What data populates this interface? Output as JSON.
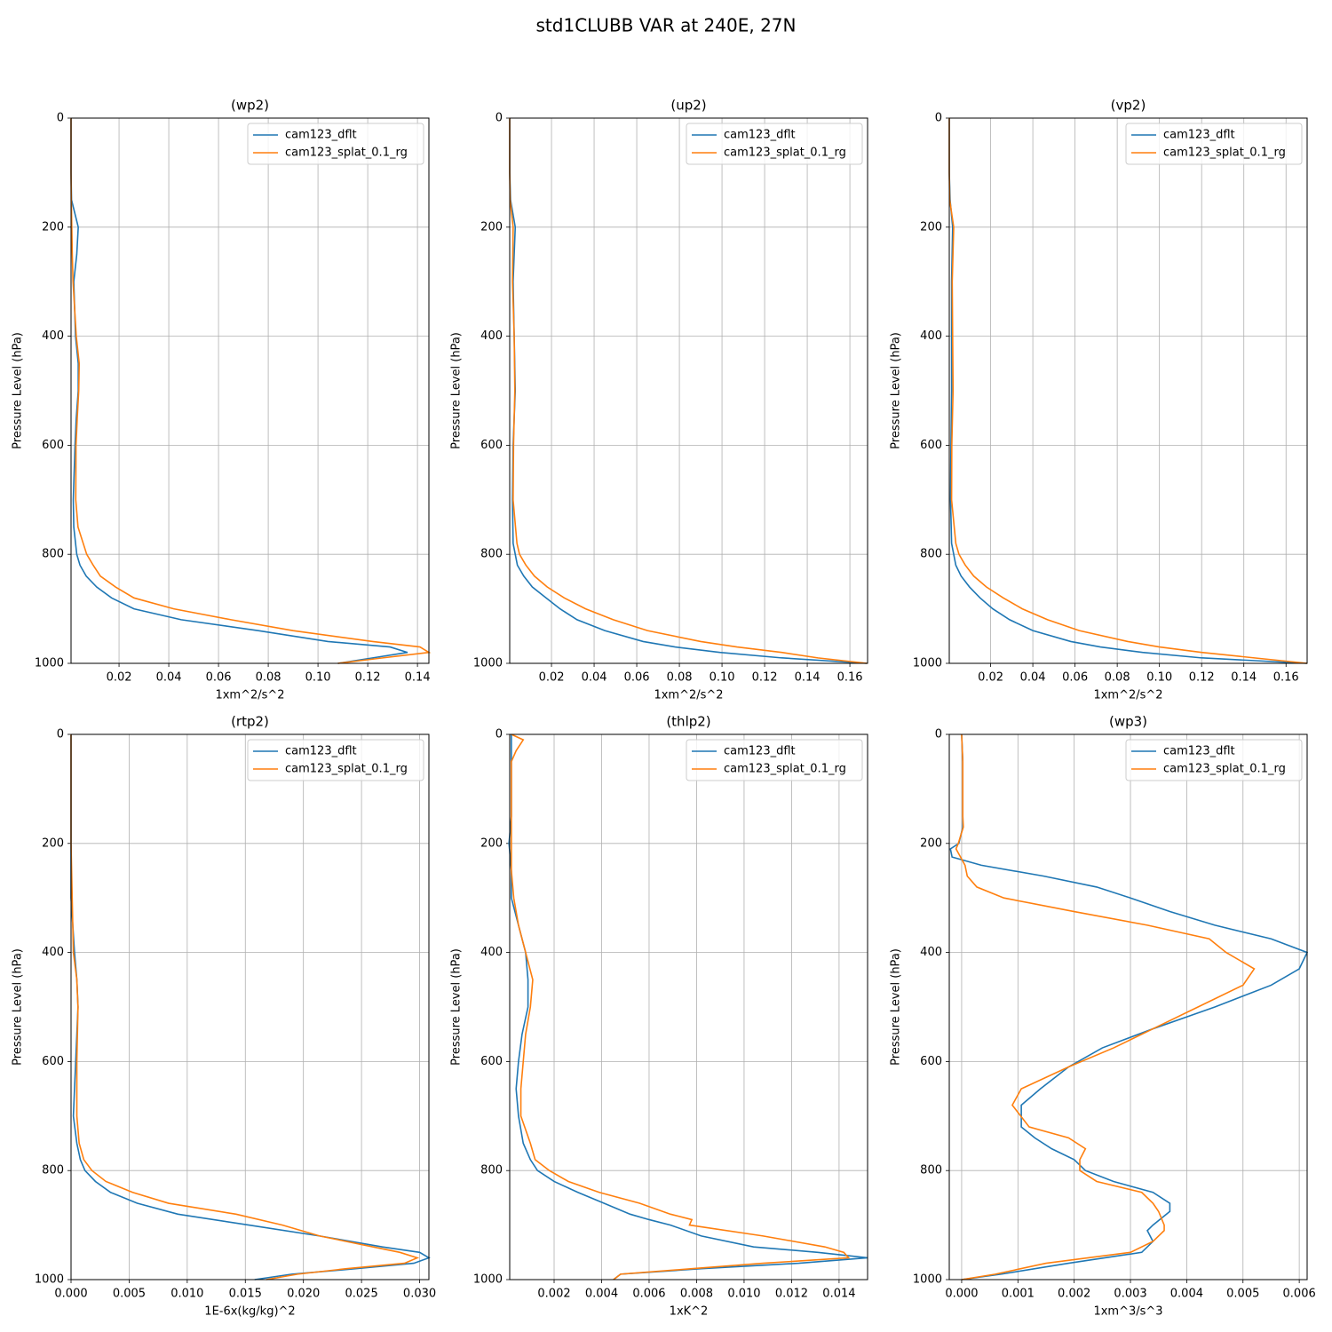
{
  "title": "std1CLUBB VAR at 240E, 27N",
  "chart_data": [
    {
      "type": "line",
      "title": "(wp2)",
      "xlabel": "1xm^2/s^2",
      "ylabel": "Pressure Level (hPa)",
      "grid": true,
      "legend": "upper right",
      "xlim": [
        0.0007,
        0.1446
      ],
      "xticks": [
        0.02,
        0.04,
        0.06,
        0.08,
        {
          "value": 0.1,
          "label": "0.10"
        },
        0.12,
        0.14
      ],
      "ylim": [
        1000,
        0
      ],
      "yticks": [
        0,
        200,
        400,
        600,
        800,
        1000
      ],
      "y": [
        0,
        100,
        150,
        200,
        250,
        300,
        400,
        450,
        500,
        550,
        600,
        700,
        750,
        800,
        820,
        840,
        860,
        880,
        900,
        920,
        940,
        960,
        970,
        980,
        990,
        1000
      ],
      "series": [
        {
          "name": "cam123_dflt",
          "color": "#1f77b4",
          "values": [
            0.0007,
            0.0007,
            0.0009,
            0.0036,
            0.003,
            0.0018,
            0.0025,
            0.0036,
            0.0036,
            0.0028,
            0.0023,
            0.0016,
            0.0018,
            0.003,
            0.0043,
            0.0068,
            0.011,
            0.017,
            0.026,
            0.045,
            0.076,
            0.104,
            0.129,
            0.136,
            0.122,
            0.108
          ]
        },
        {
          "name": "cam123_splat_0.1_rg",
          "color": "#ff7f0e",
          "values": [
            0.0007,
            0.0007,
            0.0008,
            0.001,
            0.0012,
            0.0015,
            0.0028,
            0.004,
            0.0038,
            0.0032,
            0.0027,
            0.0026,
            0.0035,
            0.007,
            0.0096,
            0.0125,
            0.0186,
            0.026,
            0.042,
            0.065,
            0.09,
            0.122,
            0.141,
            0.1446,
            0.126,
            0.108
          ]
        }
      ]
    },
    {
      "type": "line",
      "title": "(up2)",
      "xlabel": "1xm^2/s^2",
      "ylabel": "Pressure Level (hPa)",
      "grid": true,
      "legend": "upper right",
      "xlim": [
        0.0004,
        0.1683
      ],
      "xticks": [
        0.02,
        0.04,
        0.06,
        0.08,
        {
          "value": 0.1,
          "label": "0.10"
        },
        0.12,
        0.14,
        0.16
      ],
      "ylim": [
        1000,
        0
      ],
      "yticks": [
        0,
        200,
        400,
        600,
        800,
        1000
      ],
      "y": [
        0,
        100,
        150,
        200,
        300,
        400,
        500,
        600,
        700,
        780,
        800,
        820,
        840,
        860,
        880,
        900,
        920,
        940,
        960,
        970,
        980,
        990,
        1000
      ],
      "series": [
        {
          "name": "cam123_dflt",
          "color": "#1f77b4",
          "values": [
            0.0004,
            0.0004,
            0.0008,
            0.003,
            0.002,
            0.0025,
            0.003,
            0.002,
            0.0017,
            0.002,
            0.003,
            0.004,
            0.007,
            0.011,
            0.0175,
            0.024,
            0.032,
            0.045,
            0.063,
            0.078,
            0.099,
            0.128,
            0.168
          ]
        },
        {
          "name": "cam123_splat_0.1_rg",
          "color": "#ff7f0e",
          "values": [
            0.0004,
            0.0004,
            0.0006,
            0.002,
            0.0017,
            0.0025,
            0.0028,
            0.0022,
            0.002,
            0.0038,
            0.005,
            0.008,
            0.012,
            0.018,
            0.026,
            0.036,
            0.049,
            0.065,
            0.09,
            0.107,
            0.128,
            0.145,
            0.168
          ]
        }
      ]
    },
    {
      "type": "line",
      "title": "(vp2)",
      "xlabel": "1xm^2/s^2",
      "ylabel": "Pressure Level (hPa)",
      "grid": true,
      "legend": "upper right",
      "xlim": [
        0.0004,
        0.17
      ],
      "xticks": [
        0.02,
        0.04,
        0.06,
        0.08,
        {
          "value": 0.1,
          "label": "0.10"
        },
        0.12,
        0.14,
        0.16
      ],
      "ylim": [
        1000,
        0
      ],
      "yticks": [
        0,
        200,
        400,
        600,
        800,
        1000
      ],
      "y": [
        0,
        100,
        150,
        200,
        300,
        400,
        500,
        600,
        700,
        780,
        800,
        820,
        840,
        860,
        880,
        900,
        920,
        940,
        960,
        970,
        980,
        990,
        1000
      ],
      "series": [
        {
          "name": "cam123_dflt",
          "color": "#1f77b4",
          "values": [
            0.0004,
            0.0004,
            0.0008,
            0.002,
            0.0015,
            0.0015,
            0.0015,
            0.0012,
            0.001,
            0.0015,
            0.0025,
            0.0035,
            0.006,
            0.01,
            0.015,
            0.021,
            0.029,
            0.04,
            0.058,
            0.072,
            0.092,
            0.12,
            0.17
          ]
        },
        {
          "name": "cam123_splat_0.1_rg",
          "color": "#ff7f0e",
          "values": [
            0.0004,
            0.0004,
            0.0006,
            0.0025,
            0.0018,
            0.002,
            0.0022,
            0.0016,
            0.0015,
            0.0035,
            0.005,
            0.008,
            0.012,
            0.018,
            0.026,
            0.035,
            0.047,
            0.062,
            0.085,
            0.1,
            0.12,
            0.145,
            0.17
          ]
        }
      ]
    },
    {
      "type": "line",
      "title": "(rtp2)",
      "xlabel": "1E-6x(kg/kg)^2",
      "ylabel": "Pressure Level (hPa)",
      "grid": true,
      "legend": "upper right",
      "xlim": [
        0,
        0.0308
      ],
      "xticks": [
        {
          "value": 0,
          "label": "0.000"
        },
        0.005,
        {
          "value": 0.01,
          "label": "0.010"
        },
        0.015,
        {
          "value": 0.02,
          "label": "0.020"
        },
        0.025,
        {
          "value": 0.03,
          "label": "0.030"
        }
      ],
      "ylim": [
        1000,
        0
      ],
      "yticks": [
        0,
        200,
        400,
        600,
        800,
        1000
      ],
      "y": [
        0,
        200,
        300,
        400,
        450,
        500,
        600,
        700,
        750,
        780,
        800,
        820,
        840,
        860,
        880,
        900,
        920,
        940,
        950,
        960,
        970,
        980,
        990,
        1000
      ],
      "series": [
        {
          "name": "cam123_dflt",
          "color": "#1f77b4",
          "values": [
            0,
            0,
            0,
            0.0003,
            0.0005,
            0.0006,
            0.0004,
            0.0002,
            0.0005,
            0.0008,
            0.0012,
            0.0021,
            0.0034,
            0.0057,
            0.0092,
            0.0153,
            0.0214,
            0.0268,
            0.03,
            0.0308,
            0.0295,
            0.0245,
            0.019,
            0.0158
          ]
        },
        {
          "name": "cam123_splat_0.1_rg",
          "color": "#ff7f0e",
          "values": [
            0,
            0,
            0.0001,
            0.0002,
            0.0005,
            0.0006,
            0.0005,
            0.0005,
            0.0007,
            0.0011,
            0.0018,
            0.003,
            0.0053,
            0.0084,
            0.0142,
            0.0182,
            0.0214,
            0.026,
            0.0283,
            0.0298,
            0.0287,
            0.0237,
            0.0195,
            0.0168
          ]
        }
      ]
    },
    {
      "type": "line",
      "title": "(thlp2)",
      "xlabel": "1xK^2",
      "ylabel": "Pressure Level (hPa)",
      "grid": true,
      "legend": "upper right",
      "xlim": [
        0.00013,
        0.0152
      ],
      "xticks": [
        0.002,
        0.004,
        0.006,
        0.008,
        {
          "value": 0.01,
          "label": "0.010"
        },
        0.012,
        0.014
      ],
      "ylim": [
        1000,
        0
      ],
      "yticks": [
        0,
        200,
        400,
        600,
        800,
        1000
      ],
      "y": [
        0,
        10,
        30,
        50,
        100,
        150,
        200,
        250,
        300,
        350,
        400,
        450,
        500,
        550,
        600,
        650,
        700,
        750,
        780,
        800,
        820,
        840,
        860,
        880,
        890,
        900,
        920,
        940,
        950,
        960,
        970,
        980,
        990,
        1000
      ],
      "series": [
        {
          "name": "cam123_dflt",
          "color": "#1f77b4",
          "values": [
            0.0002,
            0.0002,
            0.0002,
            0.0002,
            0.0002,
            0.0002,
            0.0001,
            0.0002,
            0.0002,
            0.0005,
            0.0008,
            0.0009,
            0.0009,
            0.00065,
            0.0005,
            0.0004,
            0.0005,
            0.0007,
            0.001,
            0.0013,
            0.002,
            0.003,
            0.0041,
            0.0052,
            0.006,
            0.0069,
            0.0082,
            0.0104,
            0.0131,
            0.0152,
            0.0123,
            0.0082,
            0.0048,
            0.0045
          ]
        },
        {
          "name": "cam123_splat_0.1_rg",
          "color": "#ff7f0e",
          "values": [
            0.0002,
            0.0007,
            0.0004,
            0.0002,
            0.0002,
            0.0002,
            0.0002,
            0.0002,
            0.0003,
            0.0005,
            0.0008,
            0.0011,
            0.001,
            0.0008,
            0.0007,
            0.0006,
            0.0006,
            0.001,
            0.0012,
            0.0018,
            0.0026,
            0.0039,
            0.0056,
            0.0069,
            0.0078,
            0.0077,
            0.0108,
            0.0134,
            0.0142,
            0.0144,
            0.0108,
            0.0078,
            0.0048,
            0.0045
          ]
        }
      ]
    },
    {
      "type": "line",
      "title": "(wp3)",
      "xlabel": "1xm^3/s^3",
      "ylabel": "Pressure Level (hPa)",
      "grid": true,
      "legend": "upper right",
      "xlim": [
        -0.00022,
        0.00614
      ],
      "xticks": [
        {
          "value": 0,
          "label": "0.000"
        },
        0.001,
        0.002,
        0.003,
        0.004,
        0.005,
        0.006
      ],
      "ylim": [
        1000,
        0
      ],
      "yticks": [
        0,
        200,
        400,
        600,
        800,
        1000
      ],
      "y": [
        0,
        50,
        100,
        150,
        170,
        200,
        210,
        225,
        240,
        260,
        280,
        300,
        325,
        350,
        375,
        400,
        430,
        460,
        500,
        540,
        575,
        610,
        650,
        680,
        720,
        740,
        760,
        780,
        800,
        820,
        840,
        860,
        875,
        900,
        910,
        930,
        950,
        970,
        990,
        1000
      ],
      "series": [
        {
          "name": "cam123_dflt",
          "color": "#1f77b4",
          "values": [
            0,
            2e-05,
            2e-05,
            2e-05,
            2e-05,
            -5e-05,
            -0.0002,
            -0.00017,
            0.00035,
            0.00146,
            0.0024,
            0.003,
            0.0037,
            0.0045,
            0.0055,
            0.00614,
            0.006,
            0.0055,
            0.0045,
            0.0034,
            0.0025,
            0.0019,
            0.0014,
            0.00106,
            0.00106,
            0.0013,
            0.0016,
            0.002,
            0.0022,
            0.0027,
            0.0034,
            0.0037,
            0.0037,
            0.0034,
            0.0033,
            0.0034,
            0.0032,
            0.0019,
            0.0007,
            0
          ]
        },
        {
          "name": "cam123_splat_0.1_rg",
          "color": "#ff7f0e",
          "values": [
            0,
            2e-05,
            2e-05,
            2e-05,
            3e-05,
            -6e-05,
            -0.0001,
            -2e-05,
            6e-05,
            0.0001,
            0.00027,
            0.00075,
            0.002,
            0.0033,
            0.0044,
            0.0047,
            0.0052,
            0.005,
            0.0042,
            0.0034,
            0.0027,
            0.0019,
            0.00106,
            0.0009,
            0.0012,
            0.0019,
            0.0022,
            0.0021,
            0.0021,
            0.0024,
            0.0032,
            0.0034,
            0.0035,
            0.0036,
            0.0036,
            0.0034,
            0.003,
            0.0015,
            0.0006,
            0
          ]
        }
      ]
    }
  ]
}
